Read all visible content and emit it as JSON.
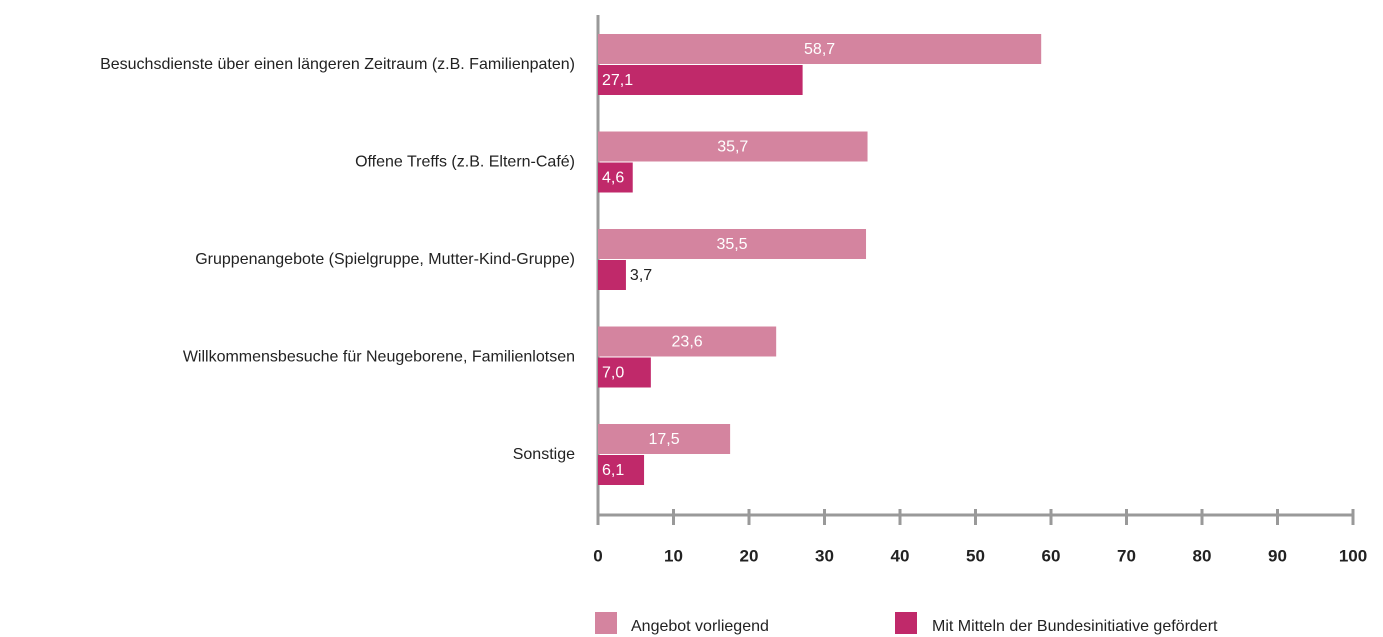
{
  "chart_data": {
    "type": "bar",
    "orientation": "horizontal",
    "legend": "bottom",
    "categories": [
      "Besuchsdienste über einen längeren Zeitraum (z.B. Familienpaten)",
      "Offene Treffs (z.B. Eltern-Café)",
      "Gruppenangebote (Spielgruppe, Mutter-Kind-Gruppe)",
      "Willkommensbesuche für Neugeborene, Familienlotsen",
      "Sonstige"
    ],
    "series": [
      {
        "name": "Angebot vorliegend",
        "color": "#d4849f",
        "values": [
          58.7,
          35.7,
          35.5,
          23.6,
          17.5
        ],
        "value_labels": [
          "58,7",
          "35,7",
          "35,5",
          "23,6",
          "17,5"
        ]
      },
      {
        "name": "Mit Mitteln der Bundesinitiative gefördert",
        "color": "#c0296a",
        "values": [
          27.1,
          4.6,
          3.7,
          7.0,
          6.1
        ],
        "value_labels": [
          "27,1",
          "4,6",
          "3,7",
          "7,0",
          "6,1"
        ]
      }
    ],
    "xlim": [
      0,
      100
    ],
    "xticks": [
      0,
      10,
      20,
      30,
      40,
      50,
      60,
      70,
      80,
      90,
      100
    ]
  }
}
